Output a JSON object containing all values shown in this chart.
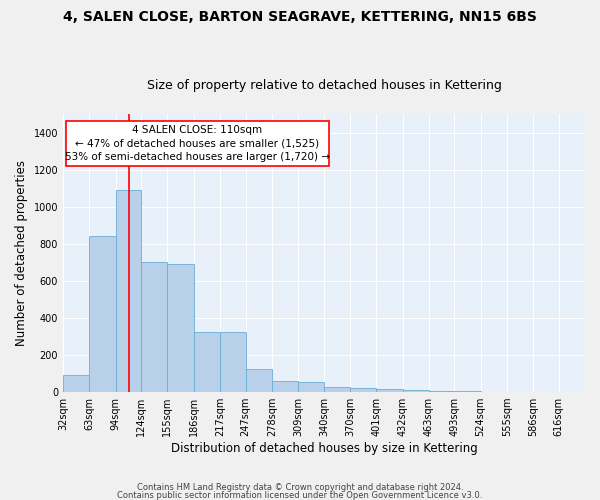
{
  "title": "4, SALEN CLOSE, BARTON SEAGRAVE, KETTERING, NN15 6BS",
  "subtitle": "Size of property relative to detached houses in Kettering",
  "xlabel": "Distribution of detached houses by size in Kettering",
  "ylabel": "Number of detached properties",
  "footnote1": "Contains HM Land Registry data © Crown copyright and database right 2024.",
  "footnote2": "Contains public sector information licensed under the Open Government Licence v3.0.",
  "annotation_line1": "4 SALEN CLOSE: 110sqm",
  "annotation_line2": "← 47% of detached houses are smaller (1,525)",
  "annotation_line3": "53% of semi-detached houses are larger (1,720) →",
  "bar_color": "#b8d0ea",
  "bar_edge_color": "#6aaed6",
  "red_line_x": 110,
  "ylim": [
    0,
    1500
  ],
  "yticks": [
    0,
    200,
    400,
    600,
    800,
    1000,
    1200,
    1400
  ],
  "bins": [
    32,
    63,
    94,
    124,
    155,
    186,
    217,
    247,
    278,
    309,
    340,
    370,
    401,
    432,
    463,
    493,
    524,
    555,
    586,
    616,
    647
  ],
  "heights": [
    90,
    840,
    1090,
    700,
    690,
    325,
    325,
    125,
    60,
    55,
    28,
    20,
    18,
    12,
    8,
    4,
    2,
    1,
    1,
    0
  ],
  "background_color": "#e8f0fa",
  "grid_color": "#ffffff",
  "fig_background": "#f0f0f0",
  "title_fontsize": 10,
  "subtitle_fontsize": 9,
  "axis_label_fontsize": 8.5,
  "tick_fontsize": 7,
  "annotation_fontsize": 7.5
}
